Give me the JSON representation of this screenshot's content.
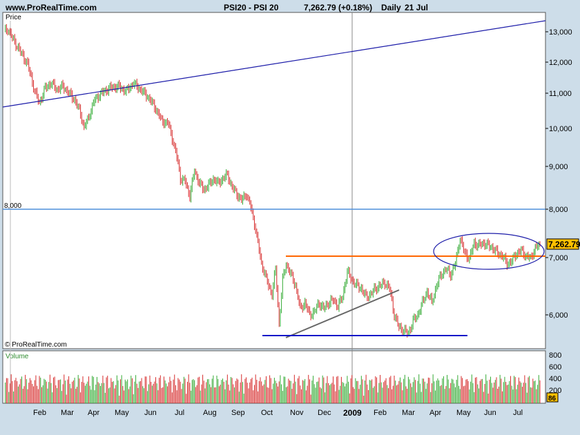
{
  "header": {
    "site": "www.ProRealTime.com",
    "instrument": "PSI20 - PSI 20",
    "last": "7,262.79 (+0.18%)",
    "period": "Daily",
    "date": "21 Jul"
  },
  "chart_data": {
    "type": "candlestick",
    "price_panel_label": "Price",
    "volume_panel_label": "Volume",
    "copyright": "© ProRealTime.com",
    "price_ticks": [
      "13,000",
      "12,000",
      "11,000",
      "10,000",
      "9,000",
      "8,000",
      "7,000",
      "6,000"
    ],
    "price_scale": "log",
    "price_range": [
      5500,
      13500
    ],
    "volume_ticks": [
      "800",
      "600",
      "400",
      "200"
    ],
    "volume_range": [
      0,
      900
    ],
    "month_labels": [
      "Feb",
      "Mar",
      "Apr",
      "May",
      "Jun",
      "Jul",
      "Aug",
      "Sep",
      "Oct",
      "Nov",
      "Dec",
      "2009",
      "Feb",
      "Mar",
      "Apr",
      "May",
      "Jun",
      "Jul"
    ],
    "year_marker": "2009",
    "last_price_badge": "7,262.79",
    "last_volume_badge": "86",
    "level_label": "8,000",
    "price_path": [
      [
        0,
        13000
      ],
      [
        3,
        13100
      ],
      [
        8,
        12700
      ],
      [
        14,
        12300
      ],
      [
        20,
        11900
      ],
      [
        26,
        11050
      ],
      [
        30,
        10700
      ],
      [
        35,
        11150
      ],
      [
        40,
        11300
      ],
      [
        45,
        11100
      ],
      [
        50,
        11200
      ],
      [
        55,
        11000
      ],
      [
        60,
        10800
      ],
      [
        65,
        10400
      ],
      [
        68,
        10000
      ],
      [
        72,
        10300
      ],
      [
        77,
        10800
      ],
      [
        83,
        11000
      ],
      [
        90,
        11150
      ],
      [
        97,
        11200
      ],
      [
        104,
        11050
      ],
      [
        110,
        11300
      ],
      [
        116,
        11100
      ],
      [
        122,
        10900
      ],
      [
        128,
        10600
      ],
      [
        134,
        10200
      ],
      [
        140,
        10100
      ],
      [
        144,
        9600
      ],
      [
        148,
        9100
      ],
      [
        150,
        8700
      ],
      [
        154,
        8650
      ],
      [
        158,
        8300
      ],
      [
        162,
        8900
      ],
      [
        166,
        8600
      ],
      [
        170,
        8450
      ],
      [
        174,
        8550
      ],
      [
        178,
        8700
      ],
      [
        182,
        8600
      ],
      [
        186,
        8700
      ],
      [
        190,
        8800
      ],
      [
        194,
        8500
      ],
      [
        198,
        8350
      ],
      [
        202,
        8200
      ],
      [
        206,
        8350
      ],
      [
        210,
        8050
      ],
      [
        213,
        7700
      ],
      [
        216,
        7300
      ],
      [
        219,
        6900
      ],
      [
        222,
        6700
      ],
      [
        225,
        6500
      ],
      [
        228,
        6350
      ],
      [
        231,
        6800
      ],
      [
        234,
        5850
      ],
      [
        237,
        6600
      ],
      [
        240,
        6900
      ],
      [
        244,
        6700
      ],
      [
        248,
        6500
      ],
      [
        252,
        6100
      ],
      [
        256,
        6200
      ],
      [
        260,
        6000
      ],
      [
        264,
        6050
      ],
      [
        268,
        6200
      ],
      [
        272,
        6100
      ],
      [
        276,
        6200
      ],
      [
        280,
        6250
      ],
      [
        284,
        6150
      ],
      [
        288,
        6300
      ],
      [
        292,
        6750
      ],
      [
        296,
        6600
      ],
      [
        300,
        6500
      ],
      [
        304,
        6450
      ],
      [
        308,
        6300
      ],
      [
        312,
        6350
      ],
      [
        316,
        6450
      ],
      [
        320,
        6500
      ],
      [
        324,
        6550
      ],
      [
        328,
        6450
      ],
      [
        332,
        6000
      ],
      [
        336,
        5800
      ],
      [
        340,
        5750
      ],
      [
        344,
        5700
      ],
      [
        348,
        5900
      ],
      [
        352,
        6000
      ],
      [
        356,
        6200
      ],
      [
        360,
        6400
      ],
      [
        364,
        6200
      ],
      [
        368,
        6500
      ],
      [
        372,
        6700
      ],
      [
        376,
        6800
      ],
      [
        380,
        6700
      ],
      [
        384,
        6900
      ],
      [
        388,
        7400
      ],
      [
        392,
        7100
      ],
      [
        396,
        7000
      ],
      [
        400,
        7300
      ],
      [
        404,
        7250
      ],
      [
        408,
        7300
      ],
      [
        412,
        7250
      ],
      [
        416,
        7200
      ],
      [
        420,
        7100
      ],
      [
        424,
        7050
      ],
      [
        428,
        6900
      ],
      [
        432,
        6950
      ],
      [
        436,
        7100
      ],
      [
        440,
        7150
      ],
      [
        444,
        7050
      ],
      [
        448,
        7000
      ],
      [
        452,
        7200
      ],
      [
        456,
        7262.79
      ]
    ],
    "overlays": [
      {
        "kind": "trendline",
        "from": [
          0,
          10600
        ],
        "to": [
          456,
          13400
        ],
        "color": "#1a1aa8"
      },
      {
        "kind": "hline",
        "value": 8000,
        "color": "#4d8fdc"
      },
      {
        "kind": "segment",
        "from": [
          239,
          7050
        ],
        "to": [
          456,
          7050
        ],
        "color": "#ff6600"
      },
      {
        "kind": "segment",
        "from": [
          237,
          5680
        ],
        "to": [
          331,
          6350
        ],
        "color": "#666666"
      },
      {
        "kind": "segment",
        "from": [
          219,
          5690
        ],
        "to": [
          391,
          5690
        ],
        "color": "#0a14c8"
      },
      {
        "kind": "ellipse",
        "center": [
          408,
          7100
        ],
        "color": "#1a1aa8"
      }
    ]
  }
}
